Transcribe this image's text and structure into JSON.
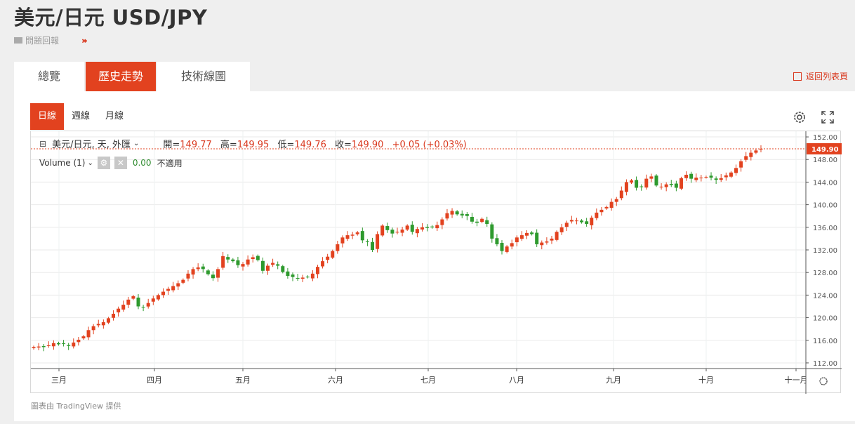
{
  "header": {
    "title": "美元/日元 USD/JPY",
    "report_label": "問題回報",
    "arrows": "›››"
  },
  "tabs": [
    {
      "label": "總覽"
    },
    {
      "label": "歷史走勢"
    },
    {
      "label": "技術線圖"
    }
  ],
  "back_link": "返回列表頁",
  "range_tabs": [
    {
      "label": "日線"
    },
    {
      "label": "週線"
    },
    {
      "label": "月線"
    }
  ],
  "legend": {
    "symbol": "美元/日元, 天, 外匯",
    "open_label": "開=",
    "open": "149.77",
    "high_label": "高=",
    "high": "149.95",
    "low_label": "低=",
    "low": "149.76",
    "close_label": "收=",
    "close": "149.90",
    "change": "+0.05 (+0.03%)",
    "volume_label": "Volume (1)",
    "volume_value": "0.00",
    "volume_na": "不適用"
  },
  "credit": "圖表由 TradingView 提供",
  "colors": {
    "up": "#e2421f",
    "down": "#2e9a2e",
    "accent": "#e2421f"
  },
  "chart_data": {
    "type": "candlestick",
    "ylim": [
      111,
      153
    ],
    "y_ticks": [
      "112.00",
      "116.00",
      "120.00",
      "124.00",
      "128.00",
      "132.00",
      "136.00",
      "140.00",
      "144.00",
      "148.00",
      "152.00"
    ],
    "x_labels": [
      "三月",
      "四月",
      "五月",
      "六月",
      "七月",
      "八月",
      "九月",
      "十月",
      "十一月"
    ],
    "last_price_label": "149.90",
    "last_price": 149.9,
    "closes": [
      114.8,
      114.9,
      114.8,
      115.1,
      115.5,
      115.3,
      115.4,
      115.0,
      115.6,
      116.1,
      116.7,
      117.8,
      118.5,
      118.9,
      119.2,
      119.9,
      120.7,
      121.6,
      122.3,
      123.2,
      123.8,
      122.0,
      121.9,
      122.6,
      123.4,
      124.0,
      124.6,
      125.1,
      125.6,
      126.1,
      126.7,
      127.8,
      128.6,
      128.9,
      128.6,
      127.7,
      127.0,
      128.6,
      130.9,
      130.3,
      130.0,
      129.3,
      129.5,
      130.3,
      130.7,
      130.2,
      128.3,
      129.2,
      129.7,
      129.2,
      128.1,
      127.4,
      127.2,
      126.9,
      127.1,
      127.2,
      127.8,
      129.0,
      130.0,
      130.8,
      131.8,
      133.0,
      134.2,
      134.6,
      134.7,
      135.1,
      133.7,
      133.4,
      132.0,
      134.8,
      136.3,
      135.5,
      134.9,
      135.2,
      135.6,
      136.3,
      135.2,
      135.7,
      136.0,
      135.9,
      136.0,
      136.4,
      137.4,
      138.5,
      138.9,
      138.3,
      138.1,
      138.0,
      137.0,
      136.8,
      137.5,
      136.6,
      134.0,
      133.0,
      131.8,
      132.6,
      133.2,
      134.2,
      134.6,
      135.0,
      134.8,
      133.0,
      133.3,
      133.5,
      134.0,
      135.2,
      136.0,
      136.8,
      137.3,
      137.2,
      136.9,
      136.6,
      137.7,
      138.6,
      139.1,
      139.6,
      140.5,
      141.0,
      142.5,
      144.0,
      144.3,
      143.0,
      143.2,
      144.6,
      145.0,
      143.4,
      143.2,
      143.6,
      143.5,
      143.0,
      144.7,
      145.3,
      144.6,
      144.8,
      144.8,
      144.9,
      144.8,
      144.4,
      144.7,
      145.2,
      145.7,
      146.5,
      147.7,
      148.6,
      149.2,
      149.6,
      149.9
    ]
  }
}
